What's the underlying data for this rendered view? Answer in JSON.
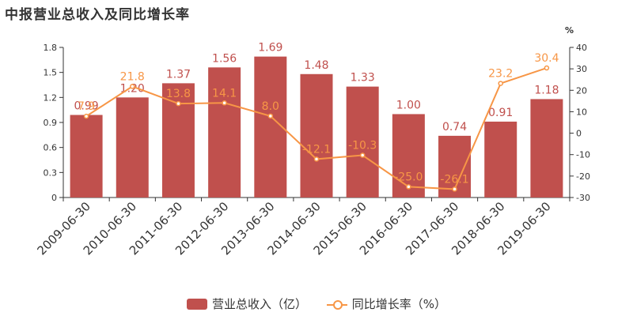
{
  "title": "中报营业总收入及同比增长率",
  "colors": {
    "bar": "#c0504d",
    "line": "#f79646",
    "axis": "#333333"
  },
  "chart_data": {
    "type": "bar+line",
    "categories": [
      "2009-06-30",
      "2010-06-30",
      "2011-06-30",
      "2012-06-30",
      "2013-06-30",
      "2014-06-30",
      "2015-06-30",
      "2016-06-30",
      "2017-06-30",
      "2018-06-30",
      "2019-06-30"
    ],
    "series": [
      {
        "name": "营业总收入（亿）",
        "type": "bar",
        "axis": "left",
        "values": [
          0.99,
          1.2,
          1.37,
          1.56,
          1.69,
          1.48,
          1.33,
          1.0,
          0.74,
          0.91,
          1.18
        ],
        "labels": [
          "0.99",
          "1.20",
          "1.37",
          "1.56",
          "1.69",
          "1.48",
          "1.33",
          "1.00",
          "0.74",
          "0.91",
          "1.18"
        ]
      },
      {
        "name": "同比增长率（%）",
        "type": "line",
        "axis": "right",
        "values": [
          7.9,
          21.8,
          13.8,
          14.1,
          8.0,
          -12.1,
          -10.3,
          -25.0,
          -26.1,
          23.2,
          30.4
        ],
        "labels": [
          "7.9",
          "21.8",
          "13.8",
          "14.1",
          "8.0",
          "-12.1",
          "-10.3",
          "-25.0",
          "-26.1",
          "23.2",
          "30.4"
        ]
      }
    ],
    "y_left": {
      "ylim": [
        0,
        1.8
      ],
      "ticks": [
        "0",
        "0.3",
        "0.6",
        "0.9",
        "1.2",
        "1.5",
        "1.8"
      ]
    },
    "y_right": {
      "ylim": [
        -30,
        40
      ],
      "ticks": [
        "-30",
        "-20",
        "-10",
        "0",
        "10",
        "20",
        "30",
        "40"
      ],
      "unit": "%"
    },
    "legend_placement": "bottom-center",
    "grid": false
  }
}
